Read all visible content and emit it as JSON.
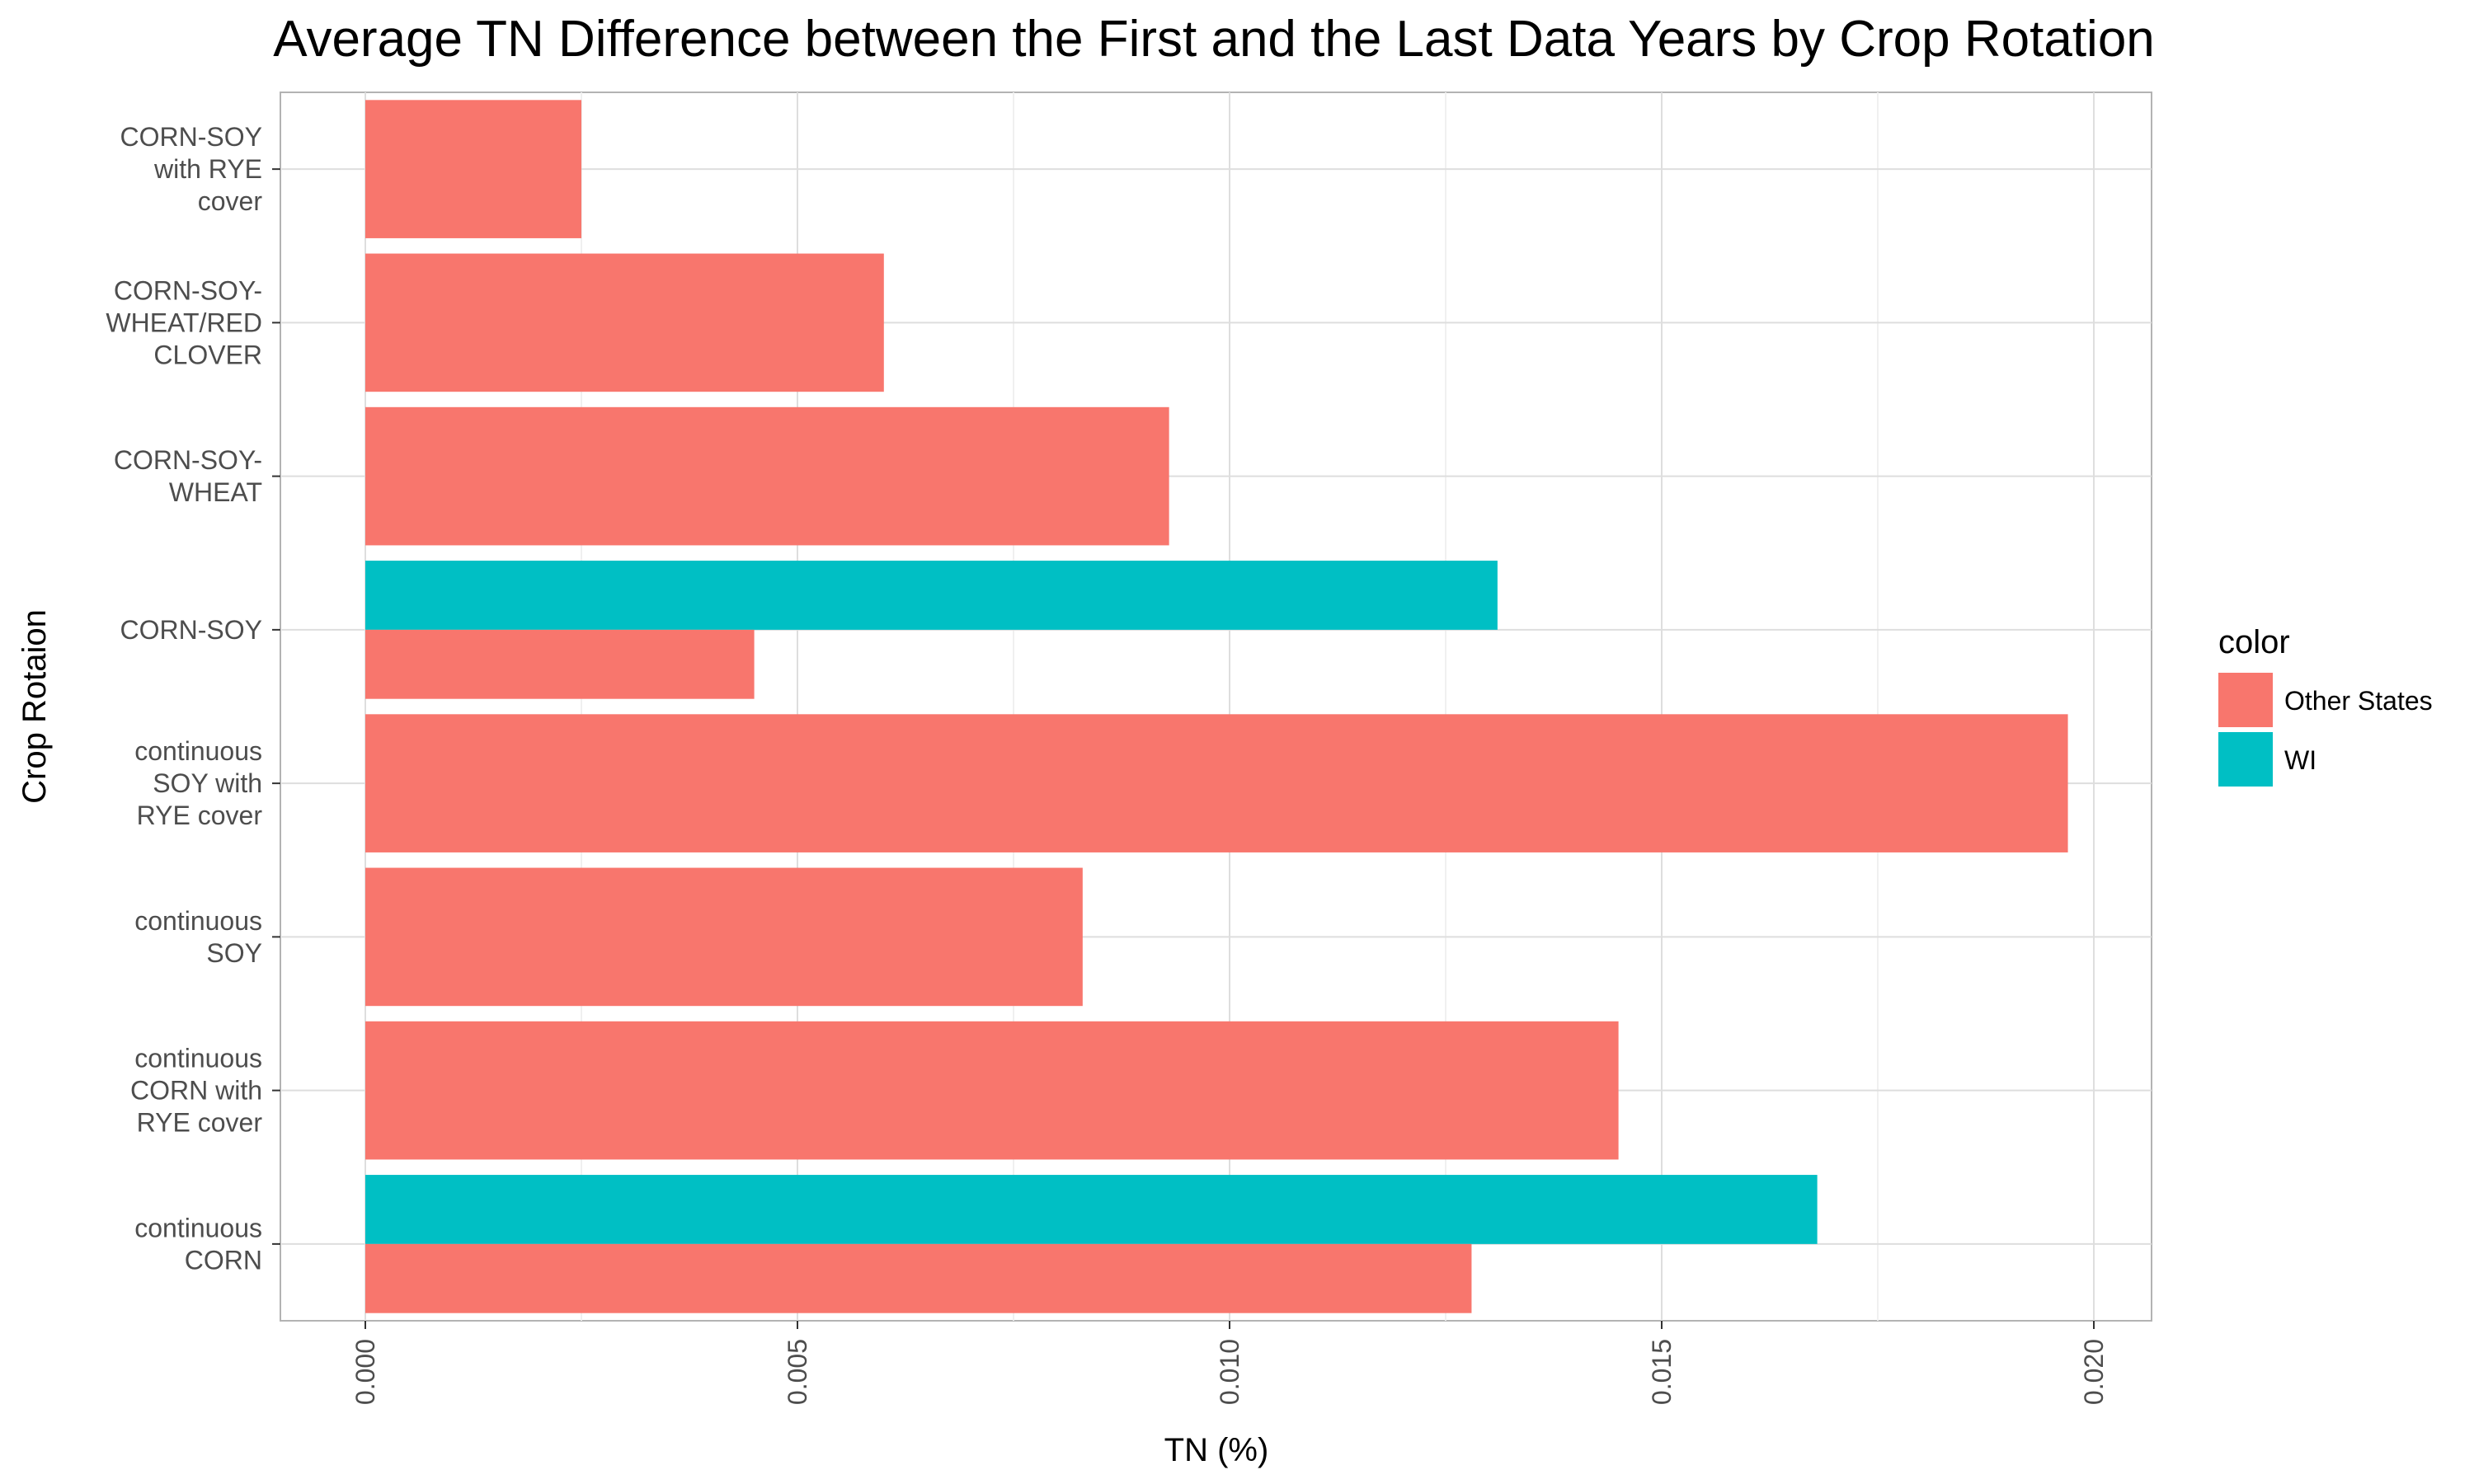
{
  "chart_data": {
    "type": "bar",
    "orientation": "horizontal",
    "title": "Average TN Difference between the First and the Last Data Years by Crop Rotation",
    "xlabel": "TN (%)",
    "ylabel": "Crop Rotaion",
    "xlim": [
      0,
      0.0207
    ],
    "x_ticks": [
      0.0,
      0.005,
      0.01,
      0.015,
      0.02
    ],
    "x_tick_labels": [
      "0.000",
      "0.005",
      "0.010",
      "0.015",
      "0.020"
    ],
    "grid": true,
    "legend_position": "right",
    "legend_title": "color",
    "categories": [
      "CORN-SOY with RYE cover",
      "CORN-SOY-WHEAT/RED CLOVER",
      "CORN-SOY-WHEAT",
      "CORN-SOY",
      "continuous SOY with RYE cover",
      "continuous SOY",
      "continuous CORN with RYE cover",
      "continuous CORN"
    ],
    "category_label_lines": [
      [
        "CORN-SOY",
        "with RYE",
        "cover"
      ],
      [
        "CORN-SOY-",
        "WHEAT/RED",
        "CLOVER"
      ],
      [
        "CORN-SOY-",
        "WHEAT"
      ],
      [
        "CORN-SOY"
      ],
      [
        "continuous",
        "SOY with",
        "RYE cover"
      ],
      [
        "continuous",
        "SOY"
      ],
      [
        "continuous",
        "CORN with",
        "RYE cover"
      ],
      [
        "continuous",
        "CORN"
      ]
    ],
    "series": [
      {
        "name": "Other States",
        "color": "#F8766D",
        "values": [
          0.0025,
          0.006,
          0.0093,
          0.0045,
          0.0197,
          0.0083,
          0.0145,
          0.0128
        ]
      },
      {
        "name": "WI",
        "color": "#00BFC4",
        "values": [
          null,
          null,
          null,
          0.0131,
          null,
          null,
          null,
          0.0168
        ]
      }
    ]
  }
}
